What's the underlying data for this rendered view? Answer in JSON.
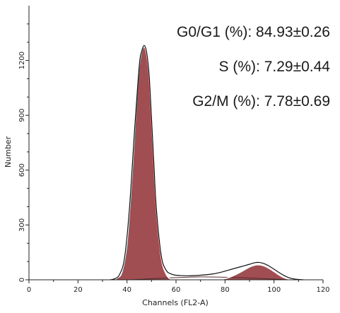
{
  "chart_data": {
    "type": "area",
    "xlabel": "Channels (FL2-A)",
    "ylabel": "Number",
    "xlim": [
      0,
      120
    ],
    "ylim": [
      0,
      1500
    ],
    "x_ticks": [
      0,
      20,
      40,
      60,
      80,
      100,
      120
    ],
    "y_ticks": [
      0,
      300,
      600,
      900,
      1200
    ],
    "x_tick_labels": [
      "0",
      "20",
      "40",
      "60",
      "80",
      "100",
      "120"
    ],
    "y_tick_labels": [
      "0",
      "300",
      "600",
      "900",
      "1200"
    ],
    "grid": false,
    "colors": {
      "fill": "#a04e52",
      "outline": "#111111",
      "curve": "#ffffff"
    },
    "series": [
      {
        "role": "g0g1-peak",
        "x": [
          34,
          36,
          38,
          40,
          42,
          44,
          45,
          46,
          47,
          48,
          49,
          50,
          51,
          52,
          54,
          56,
          58
        ],
        "values": [
          0,
          10,
          45,
          200,
          560,
          1010,
          1170,
          1250,
          1275,
          1235,
          1120,
          880,
          620,
          380,
          120,
          30,
          0
        ]
      },
      {
        "role": "g2m-peak",
        "x": [
          78,
          82,
          86,
          90,
          92,
          94,
          96,
          98,
          100,
          102,
          104,
          106,
          108
        ],
        "values": [
          0,
          15,
          40,
          70,
          80,
          82,
          76,
          62,
          45,
          27,
          12,
          4,
          0
        ]
      },
      {
        "role": "s-phase",
        "x": [
          42,
          50,
          60,
          70,
          80,
          90,
          98,
          106
        ],
        "values": [
          0,
          6,
          12,
          16,
          14,
          10,
          5,
          0
        ]
      },
      {
        "role": "outline",
        "x": [
          33,
          35,
          37,
          39,
          41,
          43,
          45,
          46,
          47,
          48,
          49,
          50,
          51,
          52,
          54,
          56,
          58,
          60,
          65,
          70,
          75,
          78,
          82,
          86,
          90,
          92,
          94,
          96,
          98,
          100,
          102,
          104,
          106,
          108,
          110,
          112
        ],
        "values": [
          0,
          6,
          30,
          120,
          390,
          800,
          1170,
          1250,
          1282,
          1245,
          1125,
          885,
          625,
          385,
          130,
          52,
          32,
          25,
          22,
          25,
          32,
          40,
          55,
          70,
          85,
          93,
          95,
          88,
          75,
          58,
          40,
          24,
          12,
          5,
          2,
          0
        ]
      }
    ],
    "annotations": [
      "G0/G1 (%): 84.93±0.26",
      "S (%): 7.29±0.44",
      "G2/M (%):  7.78±0.69"
    ]
  }
}
